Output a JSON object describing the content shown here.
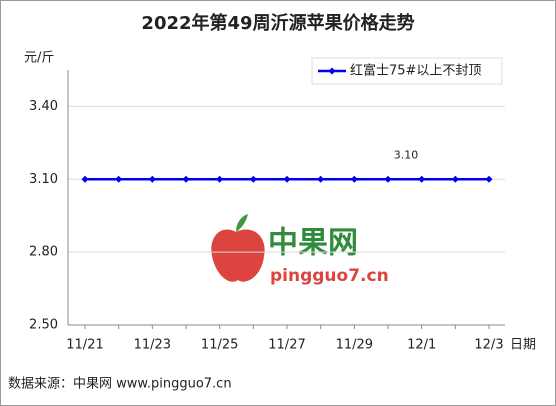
{
  "chart_data": {
    "type": "line",
    "title": "2022年第49周沂源苹果价格走势",
    "y_label": "元/斤",
    "x_label": "日期",
    "categories": [
      "11/21",
      null,
      "11/23",
      null,
      "11/25",
      null,
      "11/27",
      null,
      "11/29",
      null,
      "12/1",
      null,
      "12/3"
    ],
    "series": [
      {
        "name": "红富士75#以上不封顶",
        "color": "#0000ee",
        "values": [
          3.1,
          3.1,
          3.1,
          3.1,
          3.1,
          3.1,
          3.1,
          3.1,
          3.1,
          3.1,
          3.1,
          3.1,
          3.1
        ],
        "value_labels": [
          null,
          null,
          null,
          null,
          null,
          null,
          null,
          null,
          null,
          "3.10",
          null,
          null,
          null
        ]
      }
    ],
    "ylim": [
      2.5,
      3.55
    ],
    "yticks": [
      {
        "value": 2.5,
        "label": "2.50"
      },
      {
        "value": 2.8,
        "label": "2.80"
      },
      {
        "value": 3.1,
        "label": "3.10"
      },
      {
        "value": 3.4,
        "label": "3.40"
      }
    ],
    "grid": true,
    "legend": "top-right",
    "watermark": {
      "brand": "中果网",
      "site": "pingguo7.cn"
    },
    "source": "数据来源：中果网 www.pingguo7.cn"
  }
}
